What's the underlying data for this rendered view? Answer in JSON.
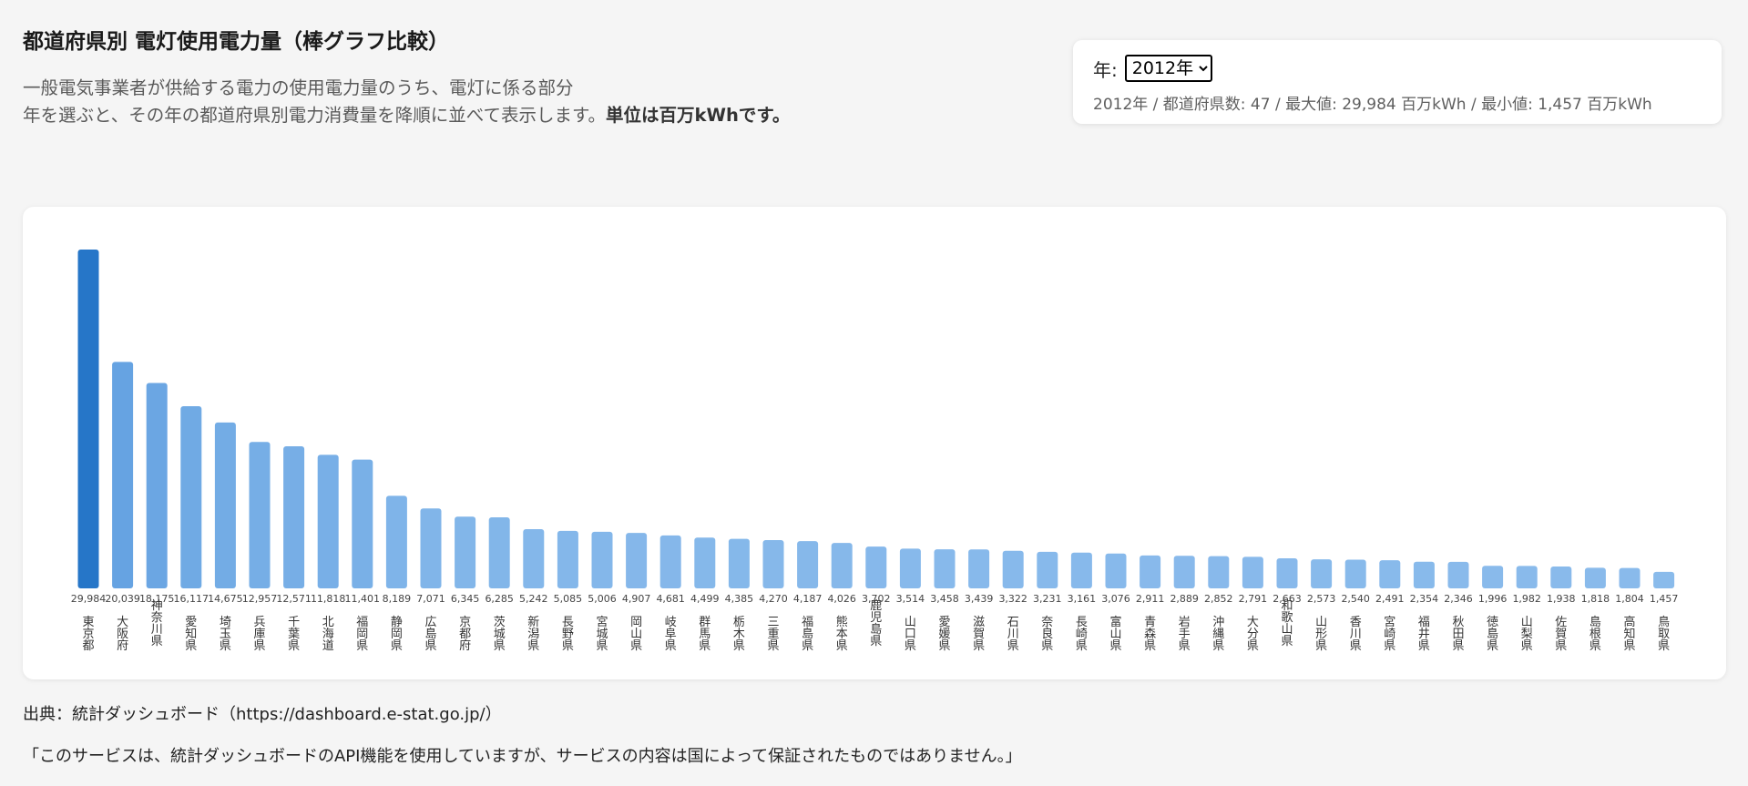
{
  "header": {
    "title": "都道府県別 電灯使用電力量（棒グラフ比較）",
    "description_line1": "一般電気事業者が供給する電力の使用電力量のうち、電灯に係る部分",
    "description_line2_plain": "年を選ぶと、その年の都道府県別電力消費量を降順に並べて表示します。",
    "description_line2_bold": "単位は百万kWhです。"
  },
  "controls": {
    "year_label": "年:",
    "year_selected": "2012年",
    "summary": "2012年 / 都道府県数: 47 / 最大値: 29,984 百万kWh / 最小値: 1,457 百万kWh"
  },
  "footer": {
    "source": "出典：統計ダッシュボード（https://dashboard.e-stat.go.jp/）",
    "disclaimer": "「このサービスは、統計ダッシュボードのAPI機能を使用していますが、サービスの内容は国によって保証されたものではありません。」"
  },
  "colors": {
    "bar_max": "#2676c8",
    "bar_high": "#3d8fe0",
    "bar_low": "#8cbcec"
  },
  "chart_data": {
    "type": "bar",
    "title": "",
    "xlabel": "",
    "ylabel": "",
    "ylim": [
      0,
      29984
    ],
    "grid": false,
    "categories": [
      "東京都",
      "大阪府",
      "神奈川県",
      "愛知県",
      "埼玉県",
      "兵庫県",
      "千葉県",
      "北海道",
      "福岡県",
      "静岡県",
      "広島県",
      "京都府",
      "茨城県",
      "新潟県",
      "長野県",
      "宮城県",
      "岡山県",
      "岐阜県",
      "群馬県",
      "栃木県",
      "三重県",
      "福島県",
      "熊本県",
      "鹿児島県",
      "山口県",
      "愛媛県",
      "滋賀県",
      "石川県",
      "奈良県",
      "長崎県",
      "富山県",
      "青森県",
      "岩手県",
      "沖縄県",
      "大分県",
      "和歌山県",
      "山形県",
      "香川県",
      "宮崎県",
      "福井県",
      "秋田県",
      "徳島県",
      "山梨県",
      "佐賀県",
      "島根県",
      "高知県",
      "鳥取県"
    ],
    "values": [
      29984,
      20039,
      18175,
      16117,
      14675,
      12957,
      12571,
      11818,
      11401,
      8189,
      7071,
      6345,
      6285,
      5242,
      5085,
      5006,
      4907,
      4681,
      4499,
      4385,
      4270,
      4187,
      4026,
      3702,
      3514,
      3458,
      3439,
      3322,
      3231,
      3161,
      3076,
      2911,
      2889,
      2852,
      2791,
      2663,
      2573,
      2540,
      2491,
      2354,
      2346,
      1996,
      1982,
      1938,
      1818,
      1804,
      1457
    ],
    "value_labels": [
      "29,984",
      "20,039",
      "18,175",
      "16,117",
      "14,675",
      "12,957",
      "12,571",
      "11,818",
      "11,401",
      "8,189",
      "7,071",
      "6,345",
      "6,285",
      "5,242",
      "5,085",
      "5,006",
      "4,907",
      "4,681",
      "4,499",
      "4,385",
      "4,270",
      "4,187",
      "4,026",
      "3,702",
      "3,514",
      "3,458",
      "3,439",
      "3,322",
      "3,231",
      "3,161",
      "3,076",
      "2,911",
      "2,889",
      "2,852",
      "2,791",
      "2,663",
      "2,573",
      "2,540",
      "2,491",
      "2,354",
      "2,346",
      "1,996",
      "1,982",
      "1,938",
      "1,818",
      "1,804",
      "1,457"
    ]
  }
}
